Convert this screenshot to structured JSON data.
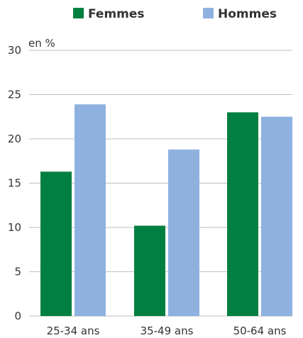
{
  "chart_data": {
    "type": "bar",
    "unit_label": "en %",
    "categories": [
      "25-34 ans",
      "35-49 ans",
      "50-64 ans"
    ],
    "series": [
      {
        "name": "Femmes",
        "color": "#008040",
        "values": [
          16.3,
          10.2,
          23.0
        ]
      },
      {
        "name": "Hommes",
        "color": "#8eb1e0",
        "values": [
          23.9,
          18.8,
          22.5
        ]
      }
    ],
    "yticks": [
      0,
      5,
      10,
      15,
      20,
      25,
      30
    ],
    "ylim": [
      0,
      30
    ],
    "grid": true,
    "legend_position": "top"
  }
}
